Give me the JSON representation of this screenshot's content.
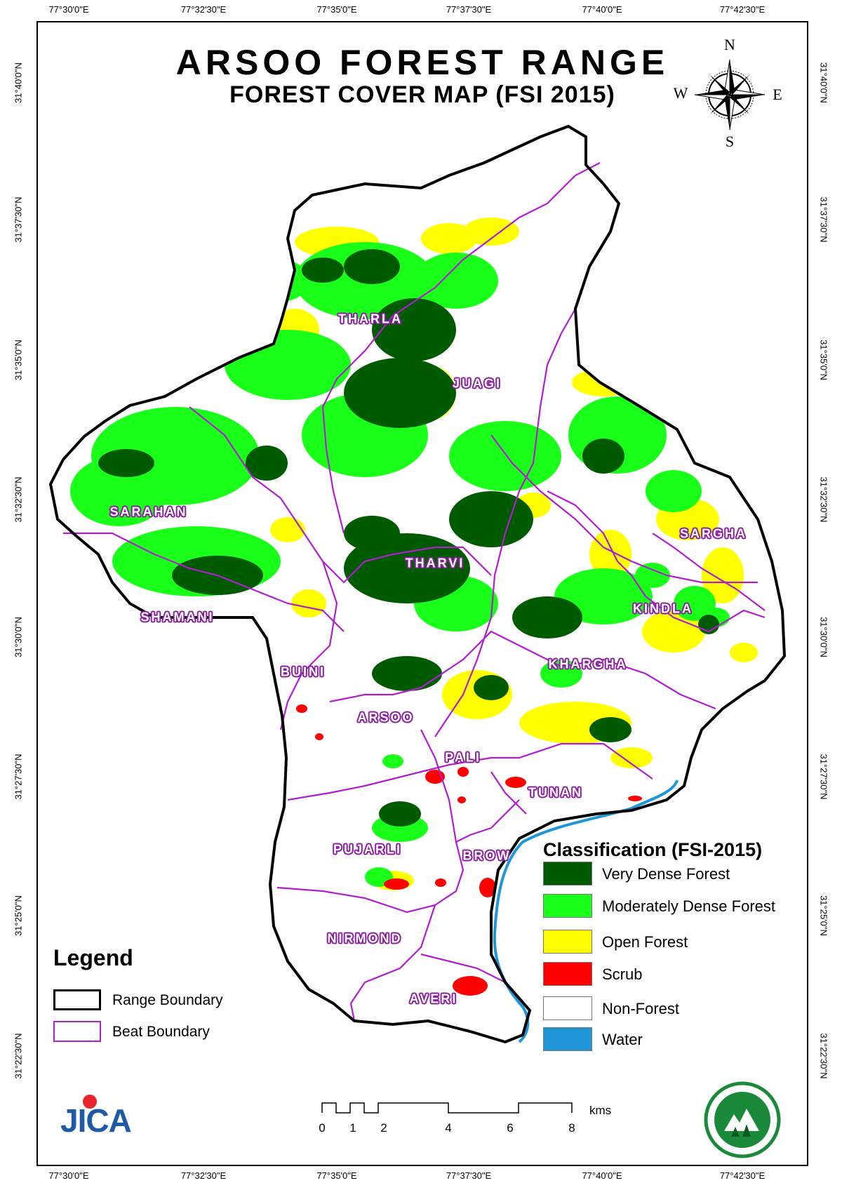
{
  "map": {
    "title": "ARSOO FOREST RANGE",
    "subtitle": "FOREST COVER MAP (FSI 2015)",
    "x_ticks": [
      "77°30'0\"E",
      "77°32'30\"E",
      "77°35'0\"E",
      "77°37'30\"E",
      "77°40'0\"E",
      "77°42'30\"E"
    ],
    "y_ticks": [
      "31°40'0\"N",
      "31°37'30\"N",
      "31°35'0\"N",
      "31°32'30\"N",
      "31°30'0\"N",
      "31°27'30\"N",
      "31°25'0\"N",
      "31°22'30\"N"
    ],
    "compass": {
      "n": "N",
      "s": "S",
      "e": "E",
      "w": "W"
    },
    "beats": [
      "THARLA",
      "JUAGI",
      "SARAHAN",
      "SARGHA",
      "THARVI",
      "SHAMANI",
      "KINDLA",
      "BUINI",
      "KHARGHA",
      "ARSOO",
      "PALI",
      "TUNAN",
      "PUJARLI",
      "BROW",
      "NIRMOND",
      "AVERI"
    ]
  },
  "classification": {
    "title": "Classification (FSI-2015)",
    "items": [
      {
        "label": "Very Dense Forest",
        "color": "#005a00"
      },
      {
        "label": "Moderately Dense Forest",
        "color": "#19ff19"
      },
      {
        "label": "Open Forest",
        "color": "#ffff00"
      },
      {
        "label": "Scrub",
        "color": "#ff0000"
      },
      {
        "label": "Non-Forest",
        "color": "#ffffff"
      },
      {
        "label": "Water",
        "color": "#1e96d8"
      }
    ]
  },
  "legend": {
    "title": "Legend",
    "items": [
      {
        "label": "Range Boundary",
        "color": "#000000"
      },
      {
        "label": "Beat Boundary",
        "color": "#b01ed0"
      }
    ]
  },
  "scale": {
    "labels": [
      "0",
      "1",
      "2",
      "4",
      "6",
      "8"
    ],
    "unit": "kms"
  },
  "logos": {
    "jica": "JICA"
  }
}
